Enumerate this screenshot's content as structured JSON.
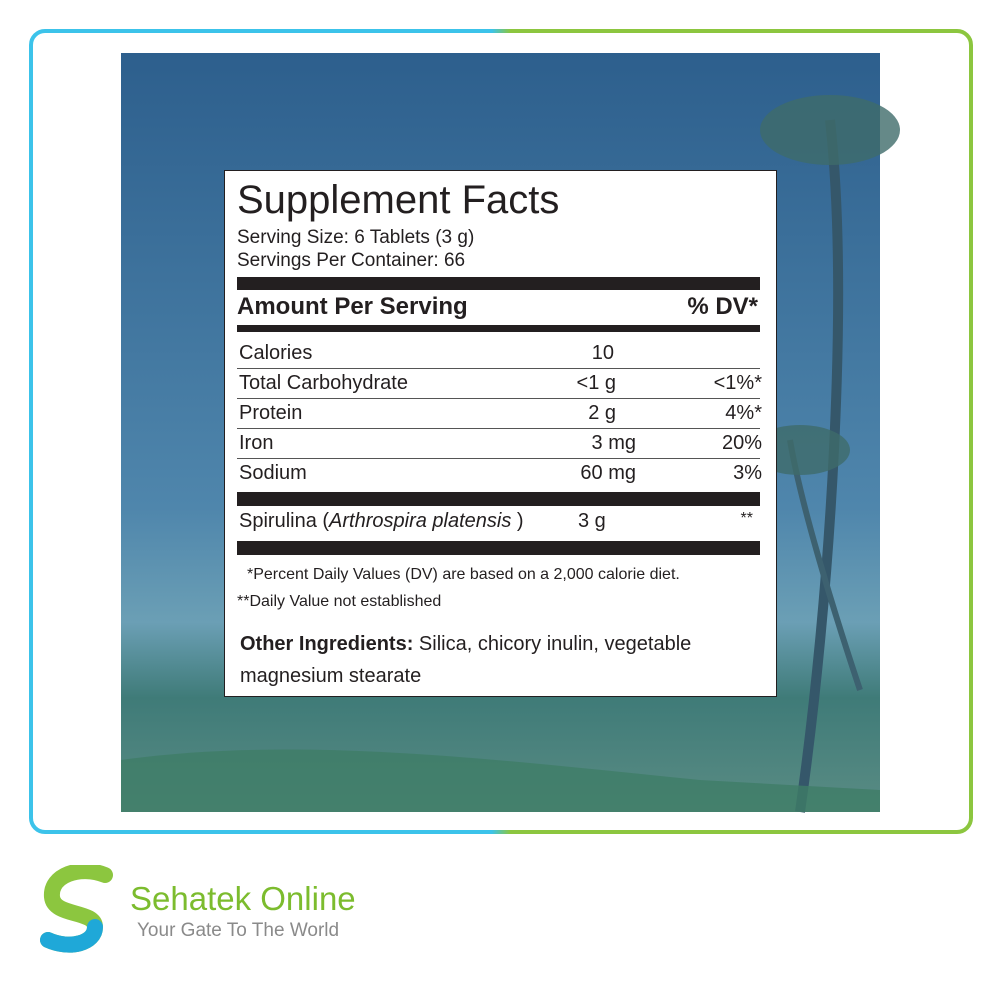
{
  "label": {
    "title": "Supplement Facts",
    "serving_size": "Serving Size: 6 Tablets (3 g)",
    "servings_per_container": "Servings Per Container:  66",
    "header": {
      "amount": "Amount Per Serving",
      "dv": "% DV*"
    },
    "rows": [
      [
        "Calories",
        "10",
        null
      ],
      [
        "Total Carbohydrate",
        "<1 g",
        "<1%*"
      ],
      [
        "Protein",
        "2 g",
        "4%*"
      ],
      [
        "Iron",
        "3 mg",
        "20%"
      ],
      [
        "Sodium",
        "60 mg",
        "3%"
      ]
    ],
    "ingredient": {
      "name_start": "Spirulina (",
      "latin": "Arthrospira platensis",
      "name_end": " )",
      "amount": "3 g",
      "dv": "**"
    },
    "footnotes": [
      "*Percent Daily Values (DV) are based on a 2,000 calorie diet.",
      "**Daily Value not established"
    ],
    "other_ingredients": {
      "heading": "Other Ingredients:",
      "text": " Silica, chicory inulin, vegetable",
      "text_line2": "magnesium stearate"
    }
  },
  "brand": {
    "name": "Sehatek Online",
    "tagline": "Your Gate To The World"
  }
}
